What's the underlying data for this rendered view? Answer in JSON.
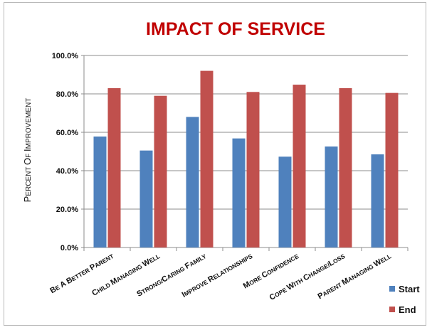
{
  "chart_data": {
    "type": "bar",
    "title": "IMPACT OF SERVICE",
    "ylabel": "Percent of Improvement",
    "xlabel": "",
    "categories": [
      "Be a better Parent",
      "Child managing well",
      "Strong/Caring Family",
      "Improve Relationships",
      "More Confidence",
      "Cope with Change/Loss",
      "Parent managing well"
    ],
    "series": [
      {
        "name": "Start",
        "color": "#4f81bd",
        "values": [
          57.8,
          50.5,
          68.0,
          56.8,
          47.3,
          52.6,
          48.5
        ]
      },
      {
        "name": "End",
        "color": "#c0504d",
        "values": [
          83.0,
          79.0,
          92.0,
          81.0,
          84.8,
          83.0,
          80.5
        ]
      }
    ],
    "ylim": [
      0,
      100
    ],
    "yticks": [
      "0.0%",
      "20.0%",
      "40.0%",
      "60.0%",
      "80.0%",
      "100.0%"
    ],
    "ytick_values": [
      0,
      20,
      40,
      60,
      80,
      100
    ],
    "grid": true,
    "legend_position": "bottom-right",
    "title_color": "#c00000"
  }
}
